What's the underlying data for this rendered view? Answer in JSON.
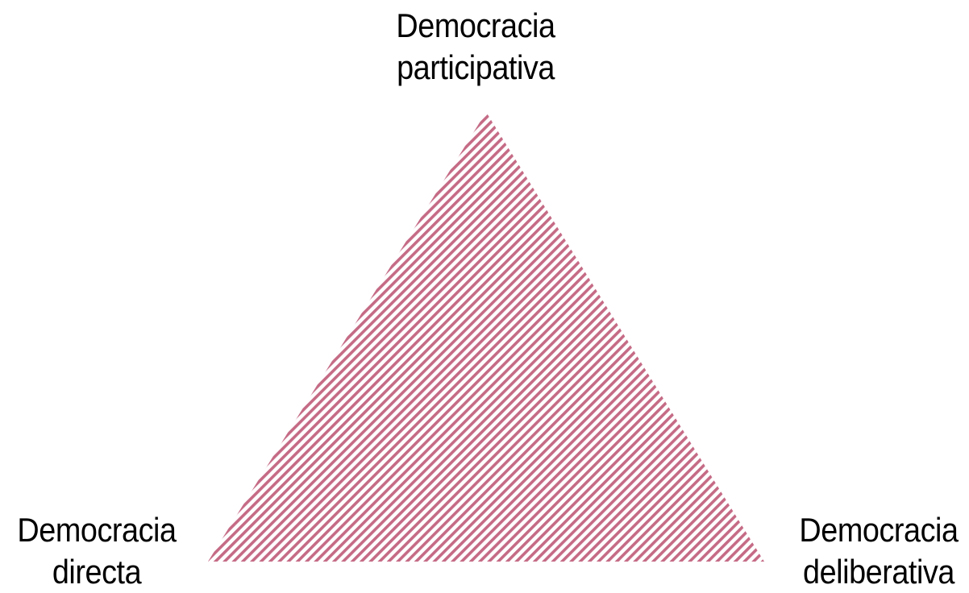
{
  "vertices": {
    "top": {
      "line1": "Democracia",
      "line2": "participativa"
    },
    "left": {
      "line1": "Democracia",
      "line2": "directa"
    },
    "right": {
      "line1": "Democracia",
      "line2": "deliberativa"
    }
  },
  "colors": {
    "hatch": "#c56b86",
    "background": "#ffffff",
    "text": "#000000"
  }
}
